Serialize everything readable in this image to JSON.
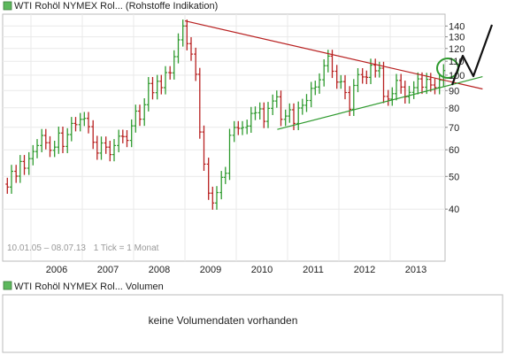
{
  "chart_data": [
    {
      "type": "ohlc",
      "legend": "WTI Rohöl NYMEX Rol... (Rohstoffe Indikation)",
      "period": "10.01.05 – 08.07.13",
      "tick_info": "1 Tick = 1 Monat",
      "x_tick_labels": [
        "2006",
        "2007",
        "2008",
        "2009",
        "2010",
        "2011",
        "2012",
        "2013"
      ],
      "y_scale": "log",
      "y_ticks": [
        40,
        50,
        60,
        70,
        80,
        90,
        100,
        110,
        120,
        130,
        140
      ],
      "ylim": [
        32,
        150
      ],
      "grid": true,
      "colors": {
        "up": "#2e9a2e",
        "down": "#b82020",
        "resistance": "#b82020",
        "support": "#2e9a2e",
        "legend_swatch": "#5cb85c"
      },
      "series_monthly_close": [
        [
          2005.04,
          46.5
        ],
        [
          2005.12,
          51.8
        ],
        [
          2005.21,
          50.1
        ],
        [
          2005.29,
          55.4
        ],
        [
          2005.37,
          52.9
        ],
        [
          2005.46,
          56.5
        ],
        [
          2005.54,
          59.3
        ],
        [
          2005.62,
          61.8
        ],
        [
          2005.71,
          66.2
        ],
        [
          2005.79,
          63.0
        ],
        [
          2005.87,
          59.8
        ],
        [
          2005.96,
          61.1
        ],
        [
          2006.04,
          67.3
        ],
        [
          2006.12,
          61.4
        ],
        [
          2006.21,
          66.6
        ],
        [
          2006.29,
          71.9
        ],
        [
          2006.37,
          71.3
        ],
        [
          2006.46,
          73.9
        ],
        [
          2006.54,
          74.4
        ],
        [
          2006.62,
          70.3
        ],
        [
          2006.71,
          63.2
        ],
        [
          2006.79,
          58.7
        ],
        [
          2006.87,
          62.9
        ],
        [
          2006.96,
          61.1
        ],
        [
          2007.04,
          58.1
        ],
        [
          2007.12,
          61.8
        ],
        [
          2007.21,
          65.9
        ],
        [
          2007.29,
          65.7
        ],
        [
          2007.37,
          64.0
        ],
        [
          2007.46,
          70.7
        ],
        [
          2007.54,
          78.2
        ],
        [
          2007.62,
          74.0
        ],
        [
          2007.71,
          81.7
        ],
        [
          2007.79,
          94.5
        ],
        [
          2007.87,
          88.7
        ],
        [
          2007.96,
          95.9
        ],
        [
          2008.04,
          91.8
        ],
        [
          2008.12,
          101.8
        ],
        [
          2008.21,
          101.6
        ],
        [
          2008.29,
          113.5
        ],
        [
          2008.37,
          127.4
        ],
        [
          2008.46,
          140.0
        ],
        [
          2008.54,
          124.1
        ],
        [
          2008.62,
          115.5
        ],
        [
          2008.71,
          100.6
        ],
        [
          2008.79,
          67.8
        ],
        [
          2008.87,
          54.4
        ],
        [
          2008.96,
          44.6
        ],
        [
          2009.04,
          41.7
        ],
        [
          2009.12,
          44.8
        ],
        [
          2009.21,
          49.7
        ],
        [
          2009.29,
          51.1
        ],
        [
          2009.37,
          66.3
        ],
        [
          2009.46,
          69.9
        ],
        [
          2009.54,
          69.5
        ],
        [
          2009.62,
          69.9
        ],
        [
          2009.71,
          70.6
        ],
        [
          2009.79,
          77.0
        ],
        [
          2009.87,
          77.3
        ],
        [
          2009.96,
          79.4
        ],
        [
          2010.04,
          72.9
        ],
        [
          2010.12,
          79.7
        ],
        [
          2010.21,
          83.8
        ],
        [
          2010.29,
          86.2
        ],
        [
          2010.37,
          73.9
        ],
        [
          2010.46,
          75.6
        ],
        [
          2010.54,
          78.9
        ],
        [
          2010.62,
          71.9
        ],
        [
          2010.71,
          79.9
        ],
        [
          2010.79,
          81.4
        ],
        [
          2010.87,
          84.1
        ],
        [
          2010.96,
          91.4
        ],
        [
          2011.04,
          92.2
        ],
        [
          2011.12,
          96.9
        ],
        [
          2011.21,
          106.7
        ],
        [
          2011.29,
          113.9
        ],
        [
          2011.37,
          102.7
        ],
        [
          2011.46,
          95.4
        ],
        [
          2011.54,
          95.7
        ],
        [
          2011.62,
          88.8
        ],
        [
          2011.71,
          79.2
        ],
        [
          2011.79,
          93.2
        ],
        [
          2011.87,
          100.4
        ],
        [
          2011.96,
          98.8
        ],
        [
          2012.04,
          98.5
        ],
        [
          2012.12,
          107.1
        ],
        [
          2012.21,
          103.0
        ],
        [
          2012.29,
          104.9
        ],
        [
          2012.37,
          86.5
        ],
        [
          2012.46,
          84.9
        ],
        [
          2012.54,
          88.1
        ],
        [
          2012.62,
          96.5
        ],
        [
          2012.71,
          92.2
        ],
        [
          2012.79,
          86.2
        ],
        [
          2012.87,
          88.9
        ],
        [
          2012.96,
          91.8
        ],
        [
          2013.04,
          97.5
        ],
        [
          2013.12,
          92.1
        ],
        [
          2013.21,
          97.2
        ],
        [
          2013.29,
          93.5
        ],
        [
          2013.37,
          91.9
        ],
        [
          2013.46,
          96.6
        ],
        [
          2013.54,
          103.2
        ]
      ],
      "trend_lines": [
        {
          "label": "resistance",
          "points": [
            [
              2008.5,
              145
            ],
            [
              2014.3,
              91
            ]
          ]
        },
        {
          "label": "support",
          "points": [
            [
              2010.3,
              69
            ],
            [
              2014.3,
              99
            ]
          ]
        }
      ]
    },
    {
      "type": "bar",
      "legend": "WTI Rohöl NYMEX Rol... Volumen",
      "message": "keine Volumendaten vorhanden"
    }
  ]
}
